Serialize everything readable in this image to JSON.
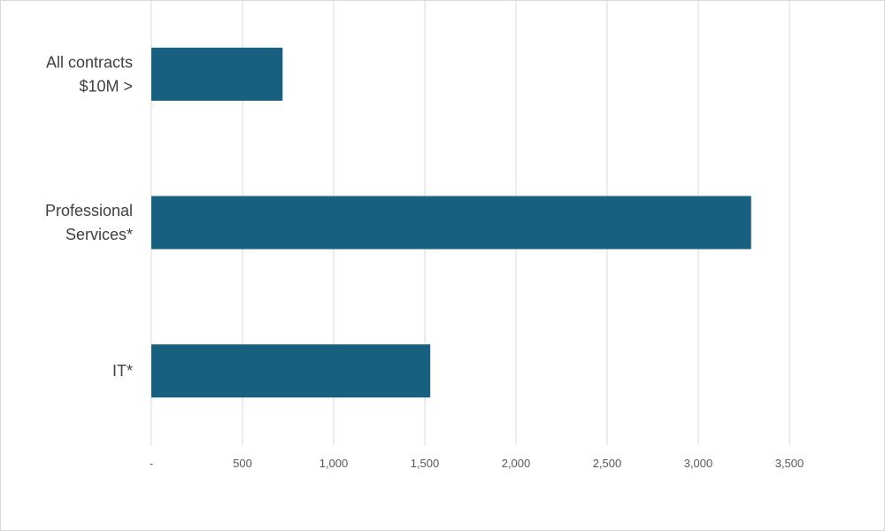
{
  "chart_data": {
    "type": "hbar",
    "categories": [
      "All contracts $10M >",
      "Professional Services*",
      "IT*"
    ],
    "values": [
      720,
      3290,
      1530
    ],
    "color": "#17607f",
    "xlim": [
      0,
      3500
    ],
    "xticks": [
      {
        "value": 0,
        "label": "-"
      },
      500,
      {
        "value": 1000,
        "label": "1,000"
      },
      {
        "value": 1500,
        "label": "1,500"
      },
      {
        "value": 2000,
        "label": "2,000"
      },
      {
        "value": 2500,
        "label": "2,500"
      },
      {
        "value": 3000,
        "label": "3,000"
      },
      {
        "value": 3500,
        "label": "3,500"
      }
    ],
    "grid": true
  }
}
